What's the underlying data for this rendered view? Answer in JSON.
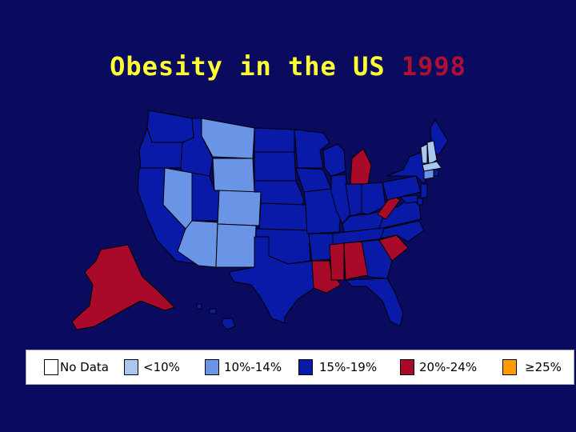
{
  "title": {
    "main": "Obesity in the US",
    "year": "1998"
  },
  "colors": {
    "background": "#0a0a5e",
    "title": "#ffff33",
    "year": "#aa1133",
    "no_data": "#ffffff",
    "lt10": "#a8c8f0",
    "r10_14": "#6a94e6",
    "r15_19": "#0a1aa8",
    "r20_24": "#aa0a2a",
    "ge25": "#ff9a00"
  },
  "legend": [
    {
      "label": "No Data",
      "color": "#ffffff"
    },
    {
      "label": "<10%",
      "color": "#a8c8f0"
    },
    {
      "label": "10%-14%",
      "color": "#6a94e6"
    },
    {
      "label": "15%-19%",
      "color": "#0a1aa8"
    },
    {
      "label": "20%-24%",
      "color": "#aa0a2a"
    },
    {
      "label": "≥25%",
      "color": "#ff9a00"
    }
  ],
  "states": {
    "WA": "15%-19%",
    "OR": "15%-19%",
    "CA": "15%-19%",
    "ID": "15%-19%",
    "NV": "10%-14%",
    "MT": "10%-14%",
    "WY": "10%-14%",
    "UT": "15%-19%",
    "AZ": "10%-14%",
    "CO": "10%-14%",
    "NM": "10%-14%",
    "ND": "15%-19%",
    "SD": "15%-19%",
    "NE": "15%-19%",
    "KS": "15%-19%",
    "OK": "15%-19%",
    "TX": "15%-19%",
    "MN": "15%-19%",
    "IA": "15%-19%",
    "MO": "15%-19%",
    "AR": "15%-19%",
    "LA": "20%-24%",
    "WI": "15%-19%",
    "IL": "15%-19%",
    "MI": "20%-24%",
    "IN": "15%-19%",
    "OH": "15%-19%",
    "KY": "15%-19%",
    "TN": "15%-19%",
    "MS": "20%-24%",
    "AL": "20%-24%",
    "GA": "15%-19%",
    "FL": "15%-19%",
    "SC": "20%-24%",
    "NC": "15%-19%",
    "VA": "15%-19%",
    "WV": "20%-24%",
    "PA": "15%-19%",
    "NY": "15%-19%",
    "ME": "15%-19%",
    "VT": "<10%",
    "NH": "<10%",
    "MA": "<10%",
    "CT": "10%-14%",
    "RI": "15%-19%",
    "NJ": "15%-19%",
    "DE": "15%-19%",
    "MD": "15%-19%",
    "AK": "20%-24%",
    "HI": "15%-19%"
  }
}
